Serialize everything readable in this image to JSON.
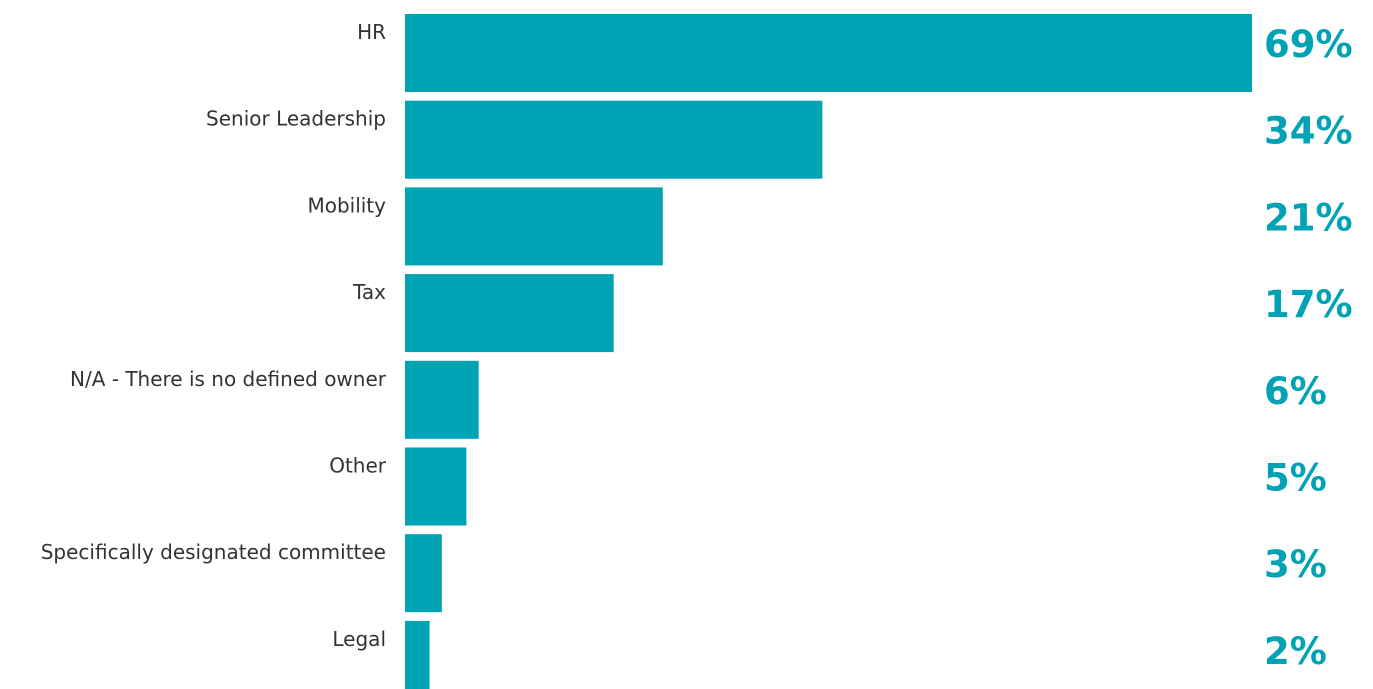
{
  "chart_data": {
    "type": "bar",
    "orientation": "horizontal",
    "categories": [
      "HR",
      "Senior Leadership",
      "Mobility",
      "Tax",
      "N/A - There is no defined owner",
      "Other",
      "Specifically designated committee",
      "Legal"
    ],
    "values": [
      69,
      34,
      21,
      17,
      6,
      5,
      3,
      2
    ],
    "value_labels": [
      "69%",
      "34%",
      "21%",
      "17%",
      "6%",
      "5%",
      "3%",
      "2%"
    ],
    "unit": "%",
    "xlim": [
      0,
      69
    ],
    "title": "",
    "xlabel": "",
    "ylabel": "",
    "grid": false,
    "legend": "none",
    "bar_color": "#00A3B4",
    "value_label_color": "#00A3B4"
  }
}
